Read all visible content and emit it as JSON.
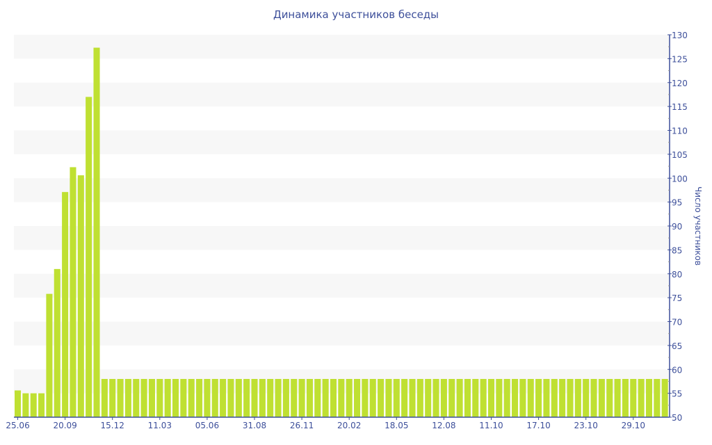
{
  "chart_data": {
    "type": "bar",
    "title": "Динамика участников беседы",
    "ylabel": "Число участников",
    "xlabel": "",
    "ylim": [
      50,
      130
    ],
    "y_ticks": [
      50,
      55,
      60,
      65,
      70,
      75,
      80,
      85,
      90,
      95,
      100,
      105,
      110,
      115,
      120,
      125,
      130
    ],
    "y_axis_position": "right",
    "grid": "alternating horizontal bands",
    "x_tick_labels": [
      "25.06",
      "20.09",
      "15.12",
      "11.03",
      "05.06",
      "31.08",
      "26.11",
      "20.02",
      "18.05",
      "12.08",
      "11.10",
      "17.10",
      "23.10",
      "29.10"
    ],
    "x_tick_every_n_bars": 6,
    "bar_color": "#bfe032",
    "axis_color": "#3d4f9a",
    "values": [
      55.6,
      55,
      55,
      55,
      75.8,
      81,
      97.1,
      102.3,
      100.6,
      117,
      127.3,
      58,
      58,
      58,
      58,
      58,
      58,
      58,
      58,
      58,
      58,
      58,
      58,
      58,
      58,
      58,
      58,
      58,
      58,
      58,
      58,
      58,
      58,
      58,
      58,
      58,
      58,
      58,
      58,
      58,
      58,
      58,
      58,
      58,
      58,
      58,
      58,
      58,
      58,
      58,
      58,
      58,
      58,
      58,
      58,
      58,
      58,
      58,
      58,
      58,
      58,
      58,
      58,
      58,
      58,
      58,
      58,
      58,
      58,
      58,
      58,
      58,
      58,
      58,
      58,
      58,
      58,
      58,
      58,
      58,
      58,
      58,
      58
    ]
  }
}
